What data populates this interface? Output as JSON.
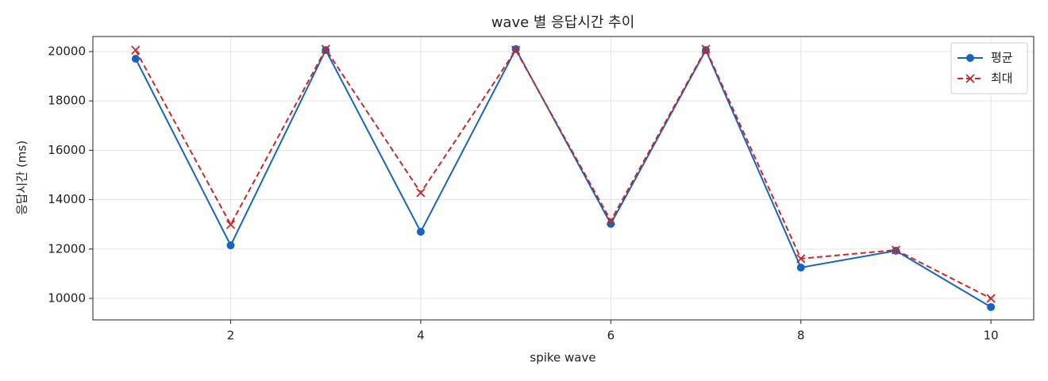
{
  "chart_data": {
    "type": "line",
    "title": "wave 별 응답시간 추이",
    "xlabel": "spike wave",
    "ylabel": "응답시간 (ms)",
    "x": [
      1,
      2,
      3,
      4,
      5,
      6,
      7,
      8,
      9,
      10
    ],
    "series": [
      {
        "name": "평균",
        "color": "#1565c0",
        "linestyle": "solid",
        "marker": "circle",
        "values": [
          19710,
          12150,
          20060,
          12700,
          20100,
          13020,
          20060,
          11250,
          11930,
          9650
        ]
      },
      {
        "name": "최대",
        "color": "#c62828",
        "linestyle": "dashed",
        "marker": "x",
        "values": [
          20060,
          12990,
          20100,
          14280,
          20060,
          13150,
          20100,
          11610,
          11960,
          10000
        ]
      }
    ],
    "xlim": [
      0.55,
      10.45
    ],
    "ylim": [
      9130,
      20610
    ],
    "xticks": [
      2,
      4,
      6,
      8,
      10
    ],
    "yticks": [
      10000,
      12000,
      14000,
      16000,
      18000,
      20000
    ],
    "grid": true,
    "legend": "upper right"
  }
}
